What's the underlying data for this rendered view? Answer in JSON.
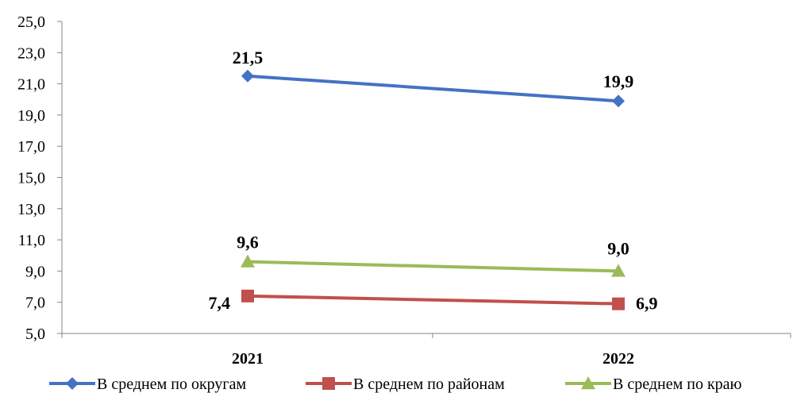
{
  "chart_data": {
    "type": "line",
    "title": "",
    "xlabel": "",
    "ylabel": "",
    "categories": [
      "2021",
      "2022"
    ],
    "ylim": [
      5.0,
      25.0
    ],
    "y_ticks": [
      "5,0",
      "7,0",
      "9,0",
      "11,0",
      "13,0",
      "15,0",
      "17,0",
      "19,0",
      "21,0",
      "23,0",
      "25,0"
    ],
    "grid": false,
    "legend_position": "bottom",
    "series": [
      {
        "name": "В среднем по округам",
        "values": [
          21.5,
          19.9
        ],
        "labels": [
          "21,5",
          "19,9"
        ],
        "color": "#4472C4",
        "marker": "diamond"
      },
      {
        "name": "В среднем по районам",
        "values": [
          7.4,
          6.9
        ],
        "labels": [
          "7,4",
          "6,9"
        ],
        "color": "#C0504D",
        "marker": "square"
      },
      {
        "name": "В среднем по краю",
        "values": [
          9.6,
          9.0
        ],
        "labels": [
          "9,6",
          "9,0"
        ],
        "color": "#9BBB59",
        "marker": "triangle"
      }
    ]
  }
}
